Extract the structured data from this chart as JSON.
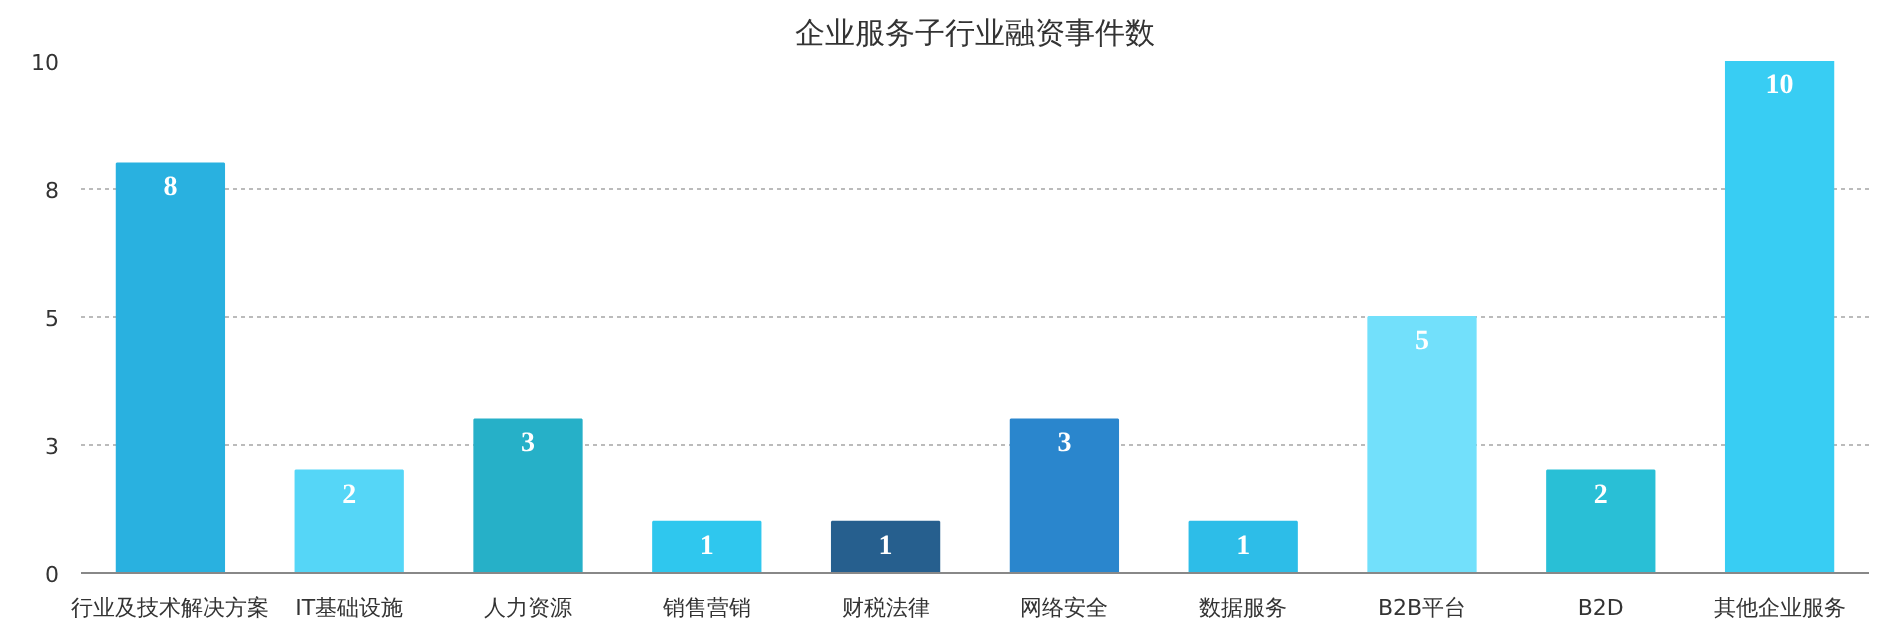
{
  "chart_data": {
    "type": "bar",
    "title": "企业服务子行业融资事件数",
    "categories": [
      "行业及技术解决方案",
      "IT基础设施",
      "人力资源",
      "销售营销",
      "财税法律",
      "网络安全",
      "数据服务",
      "B2B平台",
      "B2D",
      "其他企业服务"
    ],
    "values": [
      8,
      2,
      3,
      1,
      1,
      3,
      1,
      5,
      2,
      10
    ],
    "colors": [
      "#29b1e0",
      "#55d6f7",
      "#26b0c8",
      "#2fc7ee",
      "#265f8e",
      "#2a86cd",
      "#2dbde8",
      "#72e0fb",
      "#29bfd6",
      "#38cdf3"
    ],
    "ylim": [
      0,
      10
    ],
    "yticks": [
      0,
      {
        "value": 2.5,
        "label": "3"
      },
      5,
      {
        "value": 7.5,
        "label": "8"
      },
      10
    ],
    "grid": "y",
    "data_labels": true
  }
}
